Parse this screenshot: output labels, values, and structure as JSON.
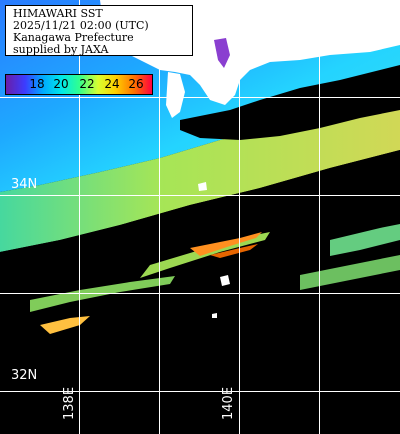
{
  "header": {
    "line1": "HIMAWARI SST",
    "line2": "2025/11/21 02:00 (UTC)",
    "line3": "Kanagawa Prefecture",
    "line4": "supplied by JAXA"
  },
  "colorbar": {
    "labels": [
      "18",
      "20",
      "22",
      "24",
      "26"
    ],
    "range_c": [
      16.5,
      27.5
    ],
    "colors": [
      "#6a1ea8",
      "#3c3cff",
      "#00a8ff",
      "#00e8e8",
      "#30ff90",
      "#d8ff30",
      "#ffd000",
      "#ff7000",
      "#ff0040"
    ]
  },
  "grid": {
    "lat_labels": [
      "34N",
      "32N"
    ],
    "lon_labels": [
      "138E",
      "140E"
    ]
  },
  "colors": {
    "land": "#ffffff",
    "no_data": "#000000",
    "grid_line": "#ffffff"
  }
}
